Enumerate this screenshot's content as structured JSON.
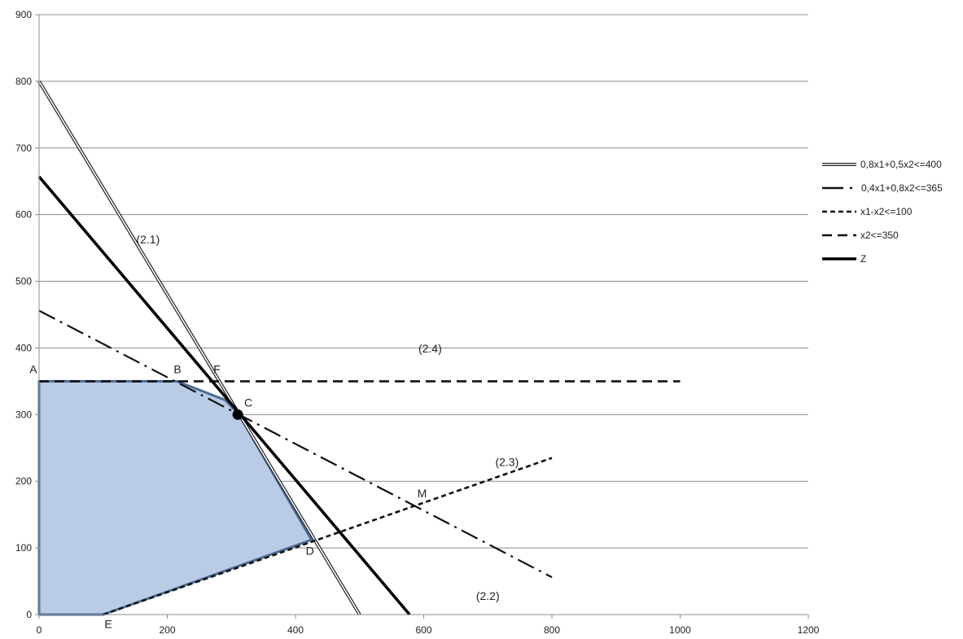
{
  "chart_data": {
    "type": "line",
    "title": "",
    "xlabel": "",
    "ylabel": "",
    "xlim": [
      0,
      1200
    ],
    "ylim": [
      0,
      900
    ],
    "xticks": [
      0,
      200,
      400,
      600,
      800,
      1000,
      1200
    ],
    "yticks": [
      0,
      100,
      200,
      300,
      400,
      500,
      600,
      700,
      800,
      900
    ],
    "grid": "horizontal",
    "legend_position": "right",
    "feasible_region": {
      "fill": "#b9cbe5",
      "stroke": "#4a6d96",
      "vertices": [
        [
          0,
          0
        ],
        [
          100,
          0
        ],
        [
          425,
          112
        ],
        [
          312,
          300
        ],
        [
          290,
          322
        ],
        [
          215,
          350
        ],
        [
          0,
          350
        ]
      ]
    },
    "series": [
      {
        "name": "0,8x1+0,5x2<=400",
        "style": "double",
        "color": "#222222",
        "points": [
          [
            0,
            800
          ],
          [
            500,
            0
          ]
        ]
      },
      {
        "name": "0,4x1+0,8x2<=365",
        "style": "dashdot",
        "color": "#111111",
        "points": [
          [
            0,
            456
          ],
          [
            800,
            56
          ]
        ]
      },
      {
        "name": "x1-x2<=100",
        "style": "dotted",
        "color": "#111111",
        "points": [
          [
            100,
            0
          ],
          [
            800,
            235
          ]
        ]
      },
      {
        "name": "x2<=350",
        "style": "dashed",
        "color": "#111111",
        "points": [
          [
            0,
            350
          ],
          [
            1000,
            350
          ]
        ]
      },
      {
        "name": "Z",
        "style": "solid-thick",
        "color": "#000000",
        "points": [
          [
            0,
            657
          ],
          [
            578,
            0
          ]
        ]
      }
    ],
    "marker": {
      "label": "C",
      "x": 310,
      "y": 300
    },
    "point_labels": [
      {
        "text": "A",
        "x": -15,
        "y": 362
      },
      {
        "text": "B",
        "x": 210,
        "y": 362
      },
      {
        "text": "F",
        "x": 272,
        "y": 362
      },
      {
        "text": "C",
        "x": 320,
        "y": 312
      },
      {
        "text": "D",
        "x": 416,
        "y": 90
      },
      {
        "text": "E",
        "x": 102,
        "y": -20
      },
      {
        "text": "M",
        "x": 590,
        "y": 176
      }
    ],
    "annotations": [
      {
        "text": "(2.1)",
        "x": 170,
        "y": 557
      },
      {
        "text": "(2.2)",
        "x": 700,
        "y": 22
      },
      {
        "text": "(2.3)",
        "x": 730,
        "y": 223
      },
      {
        "text": "(2.4)",
        "x": 610,
        "y": 393
      }
    ]
  }
}
